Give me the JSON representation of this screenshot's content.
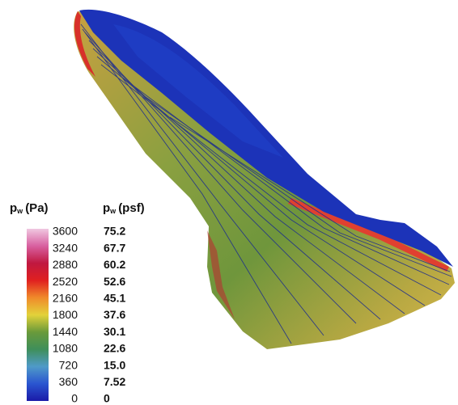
{
  "legend": {
    "pa_header": {
      "symbol": "p",
      "subscript": "w",
      "unit": "(Pa)"
    },
    "psf_header": {
      "symbol": "p",
      "subscript": "w",
      "unit": "(psf)"
    },
    "pa_labels": [
      "3600",
      "3240",
      "2880",
      "2520",
      "2160",
      "1800",
      "1440",
      "1080",
      "720",
      "360",
      "0"
    ],
    "psf_labels": [
      "75.2",
      "67.7",
      "60.2",
      "52.6",
      "45.1",
      "37.6",
      "30.1",
      "22.6",
      "15.0",
      "7.52",
      "0"
    ]
  }
}
